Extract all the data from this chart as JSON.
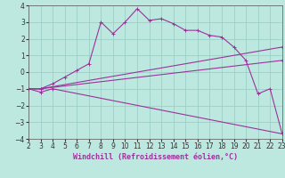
{
  "xlabel": "Windchill (Refroidissement éolien,°C)",
  "bg_color": "#bde8e0",
  "grid_color": "#9dcfc8",
  "line_color": "#993399",
  "xmin": 2,
  "xmax": 23,
  "ymin": -4,
  "ymax": 4,
  "lines": [
    {
      "x": [
        2,
        3,
        4,
        5,
        6,
        7,
        8,
        9,
        10,
        11,
        12,
        13,
        14,
        15,
        16,
        17,
        18,
        19,
        20,
        21,
        22,
        23
      ],
      "y": [
        -1.0,
        -1.0,
        -0.7,
        -0.3,
        0.1,
        0.5,
        3.0,
        2.3,
        3.0,
        3.8,
        3.1,
        3.2,
        2.9,
        2.5,
        2.5,
        2.2,
        2.1,
        1.5,
        0.7,
        -1.3,
        -1.0,
        -3.7
      ]
    },
    {
      "x": [
        2,
        3,
        23
      ],
      "y": [
        -1.0,
        -1.0,
        1.5
      ]
    },
    {
      "x": [
        2,
        3,
        23
      ],
      "y": [
        -1.0,
        -1.0,
        0.7
      ]
    },
    {
      "x": [
        2,
        3,
        4,
        23
      ],
      "y": [
        -1.0,
        -1.2,
        -1.0,
        -3.7
      ]
    }
  ],
  "xticks": [
    2,
    3,
    4,
    5,
    6,
    7,
    8,
    9,
    10,
    11,
    12,
    13,
    14,
    15,
    16,
    17,
    18,
    19,
    20,
    21,
    22,
    23
  ],
  "yticks": [
    -4,
    -3,
    -2,
    -1,
    0,
    1,
    2,
    3,
    4
  ],
  "xlabel_color": "#993399",
  "xlabel_fontsize": 6.0,
  "tick_fontsize": 5.5
}
